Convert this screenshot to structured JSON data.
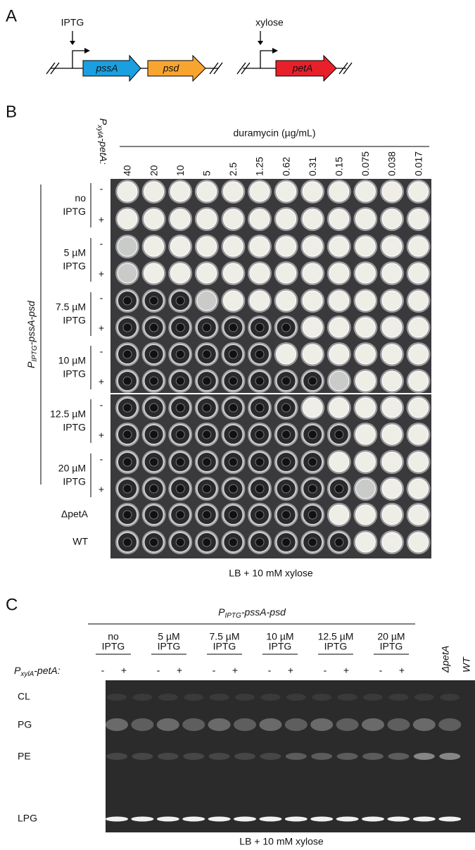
{
  "panel_a": {
    "label": "A",
    "operon1": {
      "inducer": "IPTG",
      "genes": [
        "pssA",
        "psd"
      ]
    },
    "operon2": {
      "inducer": "xylose",
      "genes": [
        "petA"
      ]
    }
  },
  "panel_b": {
    "label": "B",
    "column_header": [
      "P",
      "xylA",
      "-petA:"
    ],
    "axis_title": "duramycin (µg/mL)",
    "concentrations": [
      "40",
      "20",
      "10",
      "5",
      "2.5",
      "1.25",
      "0.62",
      "0.31",
      "0.15",
      "0.075",
      "0.038",
      "0.017"
    ],
    "groups": [
      {
        "lines": [
          "no",
          "IPTG"
        ],
        "signs": [
          "-",
          "+"
        ]
      },
      {
        "lines": [
          "5 µM",
          "IPTG"
        ],
        "signs": [
          "-",
          "+"
        ]
      },
      {
        "lines": [
          "7.5 µM",
          "IPTG"
        ],
        "signs": [
          "-",
          "+"
        ]
      },
      {
        "lines": [
          "10 µM",
          "IPTG"
        ],
        "signs": [
          "-",
          "+"
        ]
      },
      {
        "lines": [
          "12.5 µM",
          "IPTG"
        ],
        "signs": [
          "-",
          "+"
        ]
      },
      {
        "lines": [
          "20 µM",
          "IPTG"
        ],
        "signs": [
          "-",
          "+"
        ]
      }
    ],
    "strain_label": [
      "P",
      "IPTG",
      "-pssA-psd"
    ],
    "controls": [
      "ΔpetA",
      "WT"
    ],
    "caption": "LB + 10 mM xylose"
  },
  "panel_c": {
    "label": "C",
    "strain_label": [
      "P",
      "IPTG",
      "-pssA-psd"
    ],
    "groups": [
      {
        "lines": [
          "no",
          "IPTG"
        ],
        "signs": [
          "-",
          "+"
        ]
      },
      {
        "lines": [
          "5 µM",
          "IPTG"
        ],
        "signs": [
          "-",
          "+"
        ]
      },
      {
        "lines": [
          "7.5 µM",
          "IPTG"
        ],
        "signs": [
          "-",
          "+"
        ]
      },
      {
        "lines": [
          "10 µM",
          "IPTG"
        ],
        "signs": [
          "-",
          "+"
        ]
      },
      {
        "lines": [
          "12.5 µM",
          "IPTG"
        ],
        "signs": [
          "-",
          "+"
        ]
      },
      {
        "lines": [
          "20 µM",
          "IPTG"
        ],
        "signs": [
          "-",
          "+"
        ]
      }
    ],
    "row_header": [
      "P",
      "xylA",
      "-petA:"
    ],
    "controls": [
      "ΔpetA",
      "WT"
    ],
    "lipids": [
      "CL",
      "PG",
      "PE",
      "LPG"
    ],
    "caption": "LB + 10 mM xylose"
  }
}
